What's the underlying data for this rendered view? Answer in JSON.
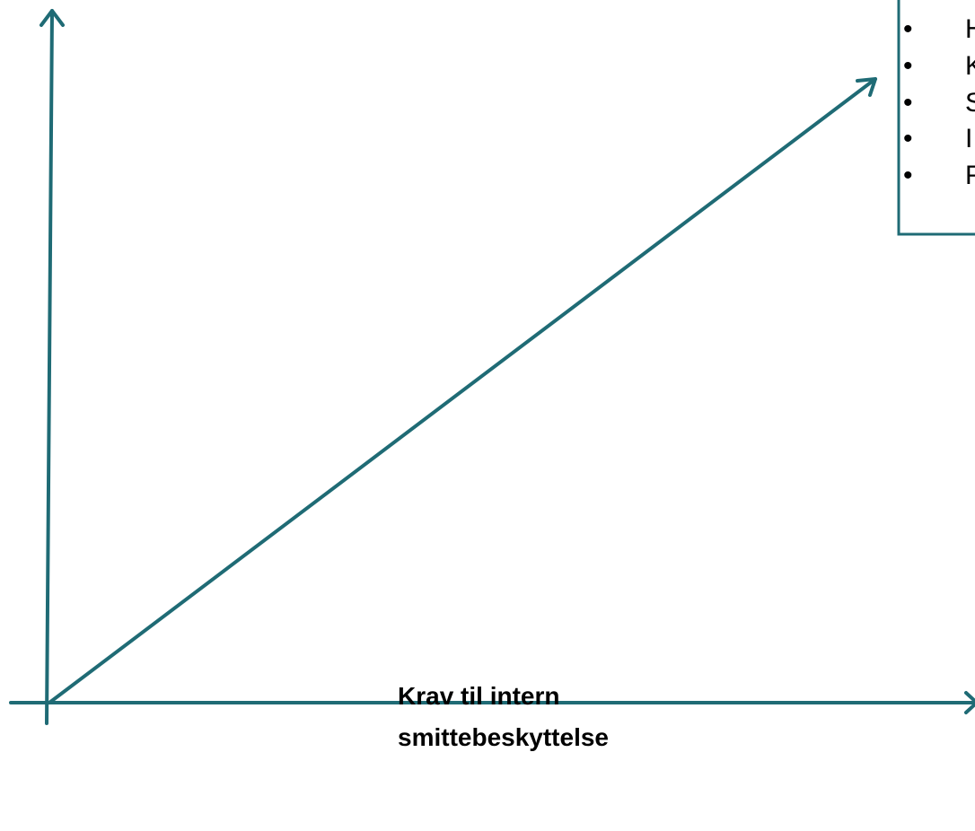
{
  "axis_label": {
    "lines": [
      "Krav til intern",
      "smittebeskyttelse"
    ]
  },
  "list_box": {
    "items": [
      "H",
      "K",
      "S",
      "I",
      "F"
    ]
  }
}
